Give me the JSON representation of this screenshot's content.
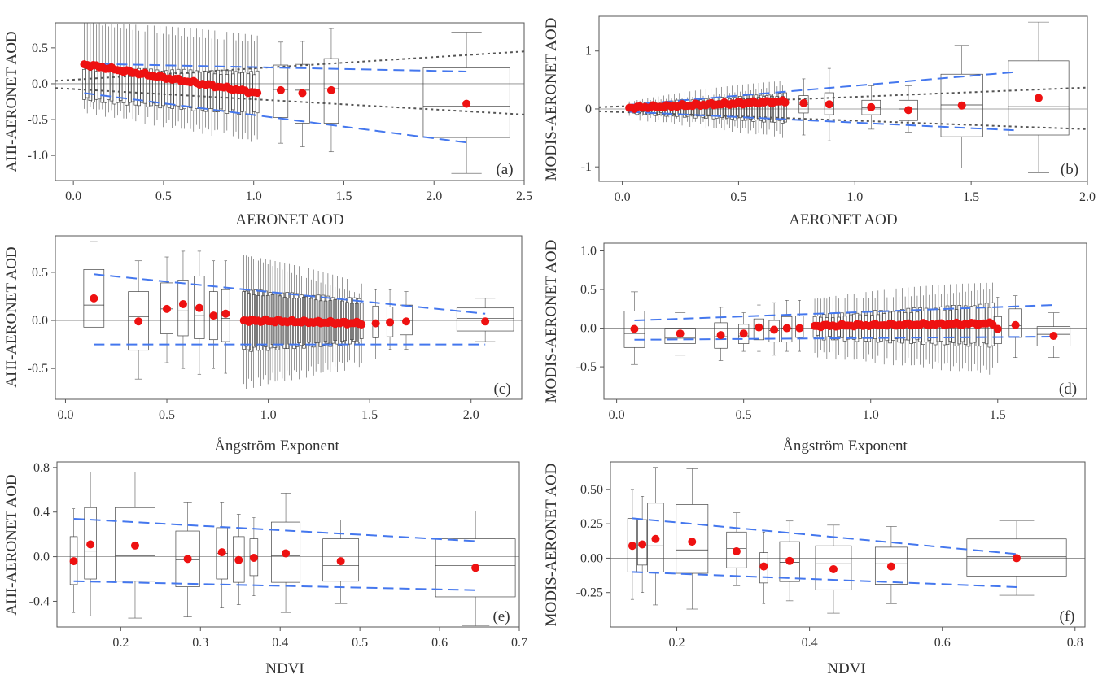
{
  "figure": {
    "colors": {
      "mean": "#ee1111",
      "envelope": "#4477ee",
      "expected_error": "#555555",
      "box": "#444444"
    }
  },
  "chart_data": [
    {
      "panel": "(a)",
      "type": "box",
      "xlabel": "AERONET AOD",
      "ylabel": "AHI-AERONET AOD",
      "xlim": [
        -0.1,
        2.5
      ],
      "ylim": [
        -1.35,
        0.85
      ],
      "xticks": [
        0.0,
        0.5,
        1.0,
        1.5,
        2.0,
        2.5
      ],
      "xtick_labels": [
        "0.0",
        "0.5",
        "1.0",
        "1.5",
        "2.0",
        "2.5"
      ],
      "yticks": [
        0.5,
        0.0,
        -0.5,
        -1.0
      ],
      "ytick_labels": [
        "0.5",
        "0.0",
        "-0.5",
        "-1.0"
      ],
      "dense": {
        "x0": 0.06,
        "x1": 1.02,
        "n": 58,
        "mean0": 0.27,
        "mean1": -0.13,
        "wtop0": 0.85,
        "wtop1": 0.63,
        "wbot0": -0.35,
        "wbot1": -0.78,
        "q10": 0.2,
        "q11": 0.15,
        "q30": -0.22,
        "q31": -0.42,
        "boxw": 0.014
      },
      "boxes": [
        {
          "x": 1.15,
          "w": 0.08,
          "mean": -0.09,
          "q1": -0.47,
          "med": -0.08,
          "q3": 0.26,
          "lo": -0.83,
          "hi": 0.58
        },
        {
          "x": 1.27,
          "w": 0.08,
          "mean": -0.13,
          "q1": -0.55,
          "med": -0.09,
          "q3": 0.27,
          "lo": -0.88,
          "hi": 0.59
        },
        {
          "x": 1.43,
          "w": 0.08,
          "mean": -0.09,
          "q1": -0.55,
          "med": -0.07,
          "q3": 0.35,
          "lo": -0.95,
          "hi": 0.77
        },
        {
          "x": 2.18,
          "w": 0.48,
          "mean": -0.28,
          "q1": -0.75,
          "med": -0.31,
          "q3": 0.22,
          "lo": -1.25,
          "hi": 0.72
        }
      ],
      "envelope": [
        [
          [
            0.06,
            0.28
          ],
          [
            2.18,
            0.17
          ]
        ],
        [
          [
            0.06,
            -0.13
          ],
          [
            2.18,
            -0.82
          ]
        ]
      ],
      "expected_error": [
        [
          [
            -0.1,
            0.04
          ],
          [
            2.5,
            0.45
          ]
        ],
        [
          [
            -0.1,
            -0.06
          ],
          [
            2.5,
            -0.43
          ]
        ]
      ]
    },
    {
      "panel": "(b)",
      "type": "box",
      "xlabel": "AERONET AOD",
      "ylabel": "MODIS-AERONET AOD",
      "xlim": [
        -0.1,
        2.0
      ],
      "ylim": [
        -1.25,
        1.6
      ],
      "xticks": [
        0.0,
        0.5,
        1.0,
        1.5,
        2.0
      ],
      "xtick_labels": [
        "0.0",
        "0.5",
        "1.0",
        "1.5",
        "2.0"
      ],
      "yticks": [
        1,
        0,
        -1
      ],
      "ytick_labels": [
        "1",
        "0",
        "-1"
      ],
      "dense": {
        "x0": 0.03,
        "x1": 0.7,
        "n": 60,
        "mean0": 0.02,
        "mean1": 0.13,
        "wtop0": 0.13,
        "wtop1": 0.45,
        "wbot0": -0.12,
        "wbot1": -0.45,
        "q10": 0.07,
        "q11": 0.25,
        "q30": -0.06,
        "q31": -0.22,
        "boxw": 0.012
      },
      "boxes": [
        {
          "x": 0.78,
          "w": 0.04,
          "mean": 0.1,
          "q1": -0.07,
          "med": 0.08,
          "q3": 0.23,
          "lo": -0.45,
          "hi": 0.52
        },
        {
          "x": 0.89,
          "w": 0.04,
          "mean": 0.08,
          "q1": -0.1,
          "med": 0.07,
          "q3": 0.28,
          "lo": -0.55,
          "hi": 0.7
        },
        {
          "x": 1.07,
          "w": 0.08,
          "mean": 0.03,
          "q1": -0.1,
          "med": 0.02,
          "q3": 0.15,
          "lo": -0.35,
          "hi": 0.4
        },
        {
          "x": 1.23,
          "w": 0.08,
          "mean": -0.02,
          "q1": -0.2,
          "med": 0.0,
          "q3": 0.15,
          "lo": -0.4,
          "hi": 0.4
        },
        {
          "x": 1.46,
          "w": 0.18,
          "mean": 0.06,
          "q1": -0.48,
          "med": 0.07,
          "q3": 0.6,
          "lo": -1.02,
          "hi": 1.1
        },
        {
          "x": 1.79,
          "w": 0.26,
          "mean": 0.19,
          "q1": -0.45,
          "med": 0.04,
          "q3": 0.83,
          "lo": -1.1,
          "hi": 1.5
        }
      ],
      "envelope": [
        [
          [
            0.03,
            0.07
          ],
          [
            1.7,
            0.64
          ]
        ],
        [
          [
            0.03,
            -0.05
          ],
          [
            1.7,
            -0.37
          ]
        ]
      ],
      "expected_error": [
        [
          [
            -0.1,
            0.03
          ],
          [
            2.0,
            0.37
          ]
        ],
        [
          [
            -0.1,
            -0.04
          ],
          [
            2.0,
            -0.35
          ]
        ]
      ]
    },
    {
      "panel": "(c)",
      "type": "box",
      "xlabel": "Ångström Exponent",
      "ylabel": "AHI-AERONET AOD",
      "xlim": [
        -0.05,
        2.25
      ],
      "ylim": [
        -0.82,
        0.88
      ],
      "xticks": [
        0.0,
        0.5,
        1.0,
        1.5,
        2.0
      ],
      "xtick_labels": [
        "0.0",
        "0.5",
        "1.0",
        "1.5",
        "2.0"
      ],
      "yticks": [
        0.5,
        0.0,
        -0.5
      ],
      "ytick_labels": [
        "0.5",
        "0.0",
        "-0.5"
      ],
      "dense": {
        "x0": 0.88,
        "x1": 1.46,
        "n": 50,
        "mean0": 0.0,
        "mean1": -0.03,
        "wtop0": 0.68,
        "wtop1": 0.33,
        "wbot0": -0.66,
        "wbot1": -0.43,
        "q10": 0.3,
        "q11": 0.2,
        "q30": -0.3,
        "q31": -0.22,
        "boxw": 0.009
      },
      "boxes": [
        {
          "x": 0.14,
          "w": 0.1,
          "mean": 0.23,
          "q1": -0.07,
          "med": 0.16,
          "q3": 0.53,
          "lo": -0.36,
          "hi": 0.82
        },
        {
          "x": 0.36,
          "w": 0.1,
          "mean": -0.01,
          "q1": -0.31,
          "med": 0.04,
          "q3": 0.3,
          "lo": -0.61,
          "hi": 0.62
        },
        {
          "x": 0.5,
          "w": 0.06,
          "mean": 0.12,
          "q1": -0.14,
          "med": 0.12,
          "q3": 0.39,
          "lo": -0.44,
          "hi": 0.66
        },
        {
          "x": 0.58,
          "w": 0.05,
          "mean": 0.17,
          "q1": -0.16,
          "med": 0.1,
          "q3": 0.42,
          "lo": -0.5,
          "hi": 0.72
        },
        {
          "x": 0.66,
          "w": 0.05,
          "mean": 0.13,
          "q1": -0.19,
          "med": 0.05,
          "q3": 0.46,
          "lo": -0.56,
          "hi": 0.72
        },
        {
          "x": 0.73,
          "w": 0.04,
          "mean": 0.05,
          "q1": -0.2,
          "med": 0.05,
          "q3": 0.3,
          "lo": -0.5,
          "hi": 0.62
        },
        {
          "x": 0.79,
          "w": 0.04,
          "mean": 0.07,
          "q1": -0.22,
          "med": 0.02,
          "q3": 0.32,
          "lo": -0.55,
          "hi": 0.62
        },
        {
          "x": 1.53,
          "w": 0.03,
          "mean": -0.03,
          "q1": -0.18,
          "med": -0.02,
          "q3": 0.15,
          "lo": -0.4,
          "hi": 0.32
        },
        {
          "x": 1.6,
          "w": 0.03,
          "mean": -0.02,
          "q1": -0.17,
          "med": -0.01,
          "q3": 0.14,
          "lo": -0.3,
          "hi": 0.32
        },
        {
          "x": 1.68,
          "w": 0.06,
          "mean": -0.01,
          "q1": -0.15,
          "med": 0.0,
          "q3": 0.16,
          "lo": -0.3,
          "hi": 0.3
        },
        {
          "x": 2.07,
          "w": 0.28,
          "mean": -0.01,
          "q1": -0.11,
          "med": 0.02,
          "q3": 0.13,
          "lo": -0.22,
          "hi": 0.23
        }
      ],
      "envelope": [
        [
          [
            0.14,
            0.48
          ],
          [
            2.07,
            0.07
          ]
        ],
        [
          [
            0.14,
            -0.25
          ],
          [
            2.07,
            -0.25
          ]
        ]
      ],
      "expected_error": []
    },
    {
      "panel": "(d)",
      "type": "box",
      "xlabel": "Ångström Exponent",
      "ylabel": "MODIS-AERONET AOD",
      "xlim": [
        -0.05,
        1.85
      ],
      "ylim": [
        -0.92,
        1.1
      ],
      "xticks": [
        0.0,
        0.5,
        1.0,
        1.5
      ],
      "xtick_labels": [
        "0.0",
        "0.5",
        "1.0",
        "1.5"
      ],
      "yticks": [
        1.0,
        0.5,
        0.0,
        -0.5
      ],
      "ytick_labels": [
        "1.0",
        "0.5",
        "0.0",
        "-0.5"
      ],
      "dense": {
        "x0": 0.78,
        "x1": 1.48,
        "n": 60,
        "mean0": 0.03,
        "mean1": 0.06,
        "wtop0": 0.38,
        "wtop1": 0.55,
        "wbot0": -0.32,
        "wbot1": -0.55,
        "q10": 0.15,
        "q11": 0.3,
        "q30": -0.12,
        "q31": -0.22,
        "boxw": 0.008
      },
      "boxes": [
        {
          "x": 0.07,
          "w": 0.08,
          "mean": -0.01,
          "q1": -0.25,
          "med": -0.07,
          "q3": 0.22,
          "lo": -0.47,
          "hi": 0.47
        },
        {
          "x": 0.25,
          "w": 0.12,
          "mean": -0.07,
          "q1": -0.2,
          "med": -0.13,
          "q3": 0.0,
          "lo": -0.35,
          "hi": 0.2
        },
        {
          "x": 0.41,
          "w": 0.05,
          "mean": -0.09,
          "q1": -0.26,
          "med": -0.11,
          "q3": 0.07,
          "lo": -0.42,
          "hi": 0.27
        },
        {
          "x": 0.5,
          "w": 0.04,
          "mean": -0.07,
          "q1": -0.2,
          "med": -0.1,
          "q3": 0.05,
          "lo": -0.3,
          "hi": 0.2
        },
        {
          "x": 0.56,
          "w": 0.04,
          "mean": 0.01,
          "q1": -0.15,
          "med": 0.0,
          "q3": 0.12,
          "lo": -0.3,
          "hi": 0.3
        },
        {
          "x": 0.62,
          "w": 0.04,
          "mean": -0.02,
          "q1": -0.18,
          "med": -0.03,
          "q3": 0.1,
          "lo": -0.35,
          "hi": 0.33
        },
        {
          "x": 0.67,
          "w": 0.04,
          "mean": 0.0,
          "q1": -0.18,
          "med": 0.0,
          "q3": 0.15,
          "lo": -0.3,
          "hi": 0.36
        },
        {
          "x": 0.72,
          "w": 0.03,
          "mean": 0.0,
          "q1": -0.12,
          "med": 0.02,
          "q3": 0.16,
          "lo": -0.3,
          "hi": 0.36
        },
        {
          "x": 1.5,
          "w": 0.03,
          "mean": -0.01,
          "q1": -0.2,
          "med": 0.0,
          "q3": 0.15,
          "lo": -0.45,
          "hi": 0.4
        },
        {
          "x": 1.57,
          "w": 0.05,
          "mean": 0.04,
          "q1": -0.12,
          "med": 0.03,
          "q3": 0.25,
          "lo": -0.38,
          "hi": 0.42
        },
        {
          "x": 1.72,
          "w": 0.13,
          "mean": -0.1,
          "q1": -0.23,
          "med": -0.08,
          "q3": 0.02,
          "lo": -0.38,
          "hi": 0.2
        }
      ],
      "envelope": [
        [
          [
            0.07,
            0.1
          ],
          [
            1.72,
            0.3
          ]
        ],
        [
          [
            0.07,
            -0.15
          ],
          [
            1.72,
            -0.11
          ]
        ]
      ],
      "expected_error": []
    },
    {
      "panel": "(e)",
      "type": "box",
      "xlabel": "NDVI",
      "ylabel": "AHI-AERONET AOD",
      "xlim": [
        0.12,
        0.7
      ],
      "ylim": [
        -0.63,
        0.85
      ],
      "xticks": [
        0.2,
        0.3,
        0.4,
        0.5,
        0.6,
        0.7
      ],
      "xtick_labels": [
        "0.2",
        "0.3",
        "0.4",
        "0.5",
        "0.6",
        "0.7"
      ],
      "yticks": [
        0.8,
        0.4,
        0.0,
        -0.4
      ],
      "ytick_labels": [
        "0.8",
        "0.4",
        "0.0",
        "-0.4"
      ],
      "boxes": [
        {
          "x": 0.141,
          "w": 0.009,
          "mean": -0.04,
          "q1": -0.25,
          "med": -0.03,
          "q3": 0.18,
          "lo": -0.5,
          "hi": 0.43
        },
        {
          "x": 0.162,
          "w": 0.015,
          "mean": 0.11,
          "q1": -0.2,
          "med": 0.05,
          "q3": 0.44,
          "lo": -0.53,
          "hi": 0.76
        },
        {
          "x": 0.218,
          "w": 0.05,
          "mean": 0.1,
          "q1": -0.22,
          "med": 0.01,
          "q3": 0.44,
          "lo": -0.55,
          "hi": 0.76
        },
        {
          "x": 0.284,
          "w": 0.03,
          "mean": -0.02,
          "q1": -0.27,
          "med": -0.03,
          "q3": 0.23,
          "lo": -0.54,
          "hi": 0.49
        },
        {
          "x": 0.327,
          "w": 0.014,
          "mean": 0.04,
          "q1": -0.2,
          "med": 0.03,
          "q3": 0.26,
          "lo": -0.46,
          "hi": 0.49
        },
        {
          "x": 0.348,
          "w": 0.014,
          "mean": -0.03,
          "q1": -0.23,
          "med": -0.02,
          "q3": 0.18,
          "lo": -0.43,
          "hi": 0.38
        },
        {
          "x": 0.367,
          "w": 0.01,
          "mean": -0.01,
          "q1": -0.17,
          "med": 0.0,
          "q3": 0.16,
          "lo": -0.35,
          "hi": 0.35
        },
        {
          "x": 0.407,
          "w": 0.036,
          "mean": 0.03,
          "q1": -0.23,
          "med": 0.01,
          "q3": 0.31,
          "lo": -0.5,
          "hi": 0.57
        },
        {
          "x": 0.476,
          "w": 0.045,
          "mean": -0.04,
          "q1": -0.22,
          "med": -0.08,
          "q3": 0.16,
          "lo": -0.42,
          "hi": 0.33
        },
        {
          "x": 0.645,
          "w": 0.1,
          "mean": -0.1,
          "q1": -0.36,
          "med": -0.08,
          "q3": 0.16,
          "lo": -0.62,
          "hi": 0.41
        }
      ],
      "envelope": [
        [
          [
            0.141,
            0.34
          ],
          [
            0.645,
            0.14
          ]
        ],
        [
          [
            0.141,
            -0.22
          ],
          [
            0.645,
            -0.3
          ]
        ]
      ],
      "expected_error": []
    },
    {
      "panel": "(f)",
      "type": "box",
      "xlabel": "NDVI",
      "ylabel": "MODIS-AERONET AOD",
      "xlim": [
        0.1,
        0.815
      ],
      "ylim": [
        -0.5,
        0.7
      ],
      "xticks": [
        0.2,
        0.4,
        0.6,
        0.8
      ],
      "xtick_labels": [
        "0.2",
        "0.4",
        "0.6",
        "0.8"
      ],
      "yticks": [
        0.5,
        0.25,
        0.0,
        -0.25
      ],
      "ytick_labels": [
        "0.50",
        "0.25",
        "0.00",
        "-0.25"
      ],
      "boxes": [
        {
          "x": 0.133,
          "w": 0.014,
          "mean": 0.09,
          "q1": -0.1,
          "med": 0.09,
          "q3": 0.29,
          "lo": -0.3,
          "hi": 0.5
        },
        {
          "x": 0.148,
          "w": 0.014,
          "mean": 0.1,
          "q1": -0.05,
          "med": 0.09,
          "q3": 0.28,
          "lo": -0.25,
          "hi": 0.45
        },
        {
          "x": 0.168,
          "w": 0.024,
          "mean": 0.14,
          "q1": -0.1,
          "med": 0.09,
          "q3": 0.4,
          "lo": -0.34,
          "hi": 0.66
        },
        {
          "x": 0.223,
          "w": 0.048,
          "mean": 0.12,
          "q1": -0.11,
          "med": 0.06,
          "q3": 0.39,
          "lo": -0.37,
          "hi": 0.65
        },
        {
          "x": 0.29,
          "w": 0.03,
          "mean": 0.05,
          "q1": -0.07,
          "med": 0.07,
          "q3": 0.19,
          "lo": -0.2,
          "hi": 0.33
        },
        {
          "x": 0.331,
          "w": 0.012,
          "mean": -0.06,
          "q1": -0.18,
          "med": -0.04,
          "q3": 0.04,
          "lo": -0.33,
          "hi": 0.19
        },
        {
          "x": 0.37,
          "w": 0.03,
          "mean": -0.02,
          "q1": -0.17,
          "med": -0.03,
          "q3": 0.12,
          "lo": -0.31,
          "hi": 0.27
        },
        {
          "x": 0.436,
          "w": 0.054,
          "mean": -0.08,
          "q1": -0.23,
          "med": -0.04,
          "q3": 0.09,
          "lo": -0.4,
          "hi": 0.24
        },
        {
          "x": 0.523,
          "w": 0.048,
          "mean": -0.06,
          "q1": -0.19,
          "med": -0.04,
          "q3": 0.08,
          "lo": -0.33,
          "hi": 0.23
        },
        {
          "x": 0.712,
          "w": 0.15,
          "mean": 0.0,
          "q1": -0.13,
          "med": 0.01,
          "q3": 0.14,
          "lo": -0.27,
          "hi": 0.27
        }
      ],
      "envelope": [
        [
          [
            0.133,
            0.29
          ],
          [
            0.712,
            0.03
          ]
        ],
        [
          [
            0.133,
            -0.1
          ],
          [
            0.712,
            -0.21
          ]
        ]
      ],
      "expected_error": []
    }
  ]
}
